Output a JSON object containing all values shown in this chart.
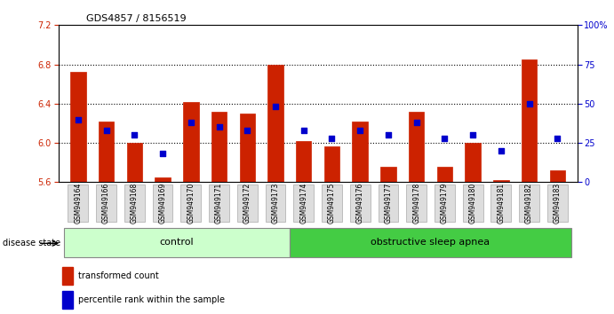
{
  "title": "GDS4857 / 8156519",
  "samples": [
    "GSM949164",
    "GSM949166",
    "GSM949168",
    "GSM949169",
    "GSM949170",
    "GSM949171",
    "GSM949172",
    "GSM949173",
    "GSM949174",
    "GSM949175",
    "GSM949176",
    "GSM949177",
    "GSM949178",
    "GSM949179",
    "GSM949180",
    "GSM949181",
    "GSM949182",
    "GSM949183"
  ],
  "red_values": [
    6.72,
    6.22,
    6.0,
    5.65,
    6.42,
    6.32,
    6.3,
    6.8,
    6.02,
    5.96,
    6.22,
    5.76,
    6.32,
    5.76,
    6.0,
    5.62,
    6.85,
    5.72
  ],
  "blue_values": [
    40,
    33,
    30,
    18,
    38,
    35,
    33,
    48,
    33,
    28,
    33,
    30,
    38,
    28,
    30,
    20,
    50,
    28
  ],
  "ylim_left": [
    5.6,
    7.2
  ],
  "ylim_right": [
    0,
    100
  ],
  "yticks_left": [
    5.6,
    6.0,
    6.4,
    6.8,
    7.2
  ],
  "yticks_right": [
    0,
    25,
    50,
    75,
    100
  ],
  "ytick_labels_right": [
    "0",
    "25",
    "50",
    "75",
    "100%"
  ],
  "baseline": 5.6,
  "control_count": 8,
  "group1_label": "control",
  "group2_label": "obstructive sleep apnea",
  "legend1": "transformed count",
  "legend2": "percentile rank within the sample",
  "bar_color": "#cc2200",
  "dot_color": "#0000cc",
  "dot_size": 18,
  "control_bg": "#ccffcc",
  "apnea_bg": "#44cc44",
  "disease_label": "disease state",
  "bar_width": 0.55
}
